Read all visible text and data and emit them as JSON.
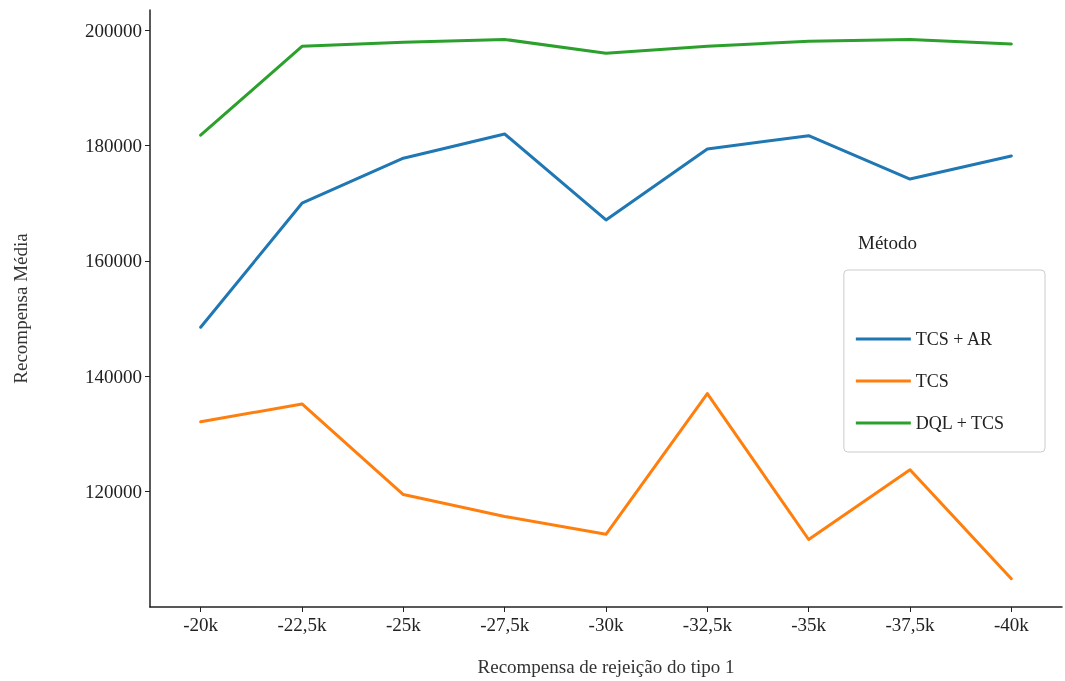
{
  "chart_data": {
    "type": "line",
    "xlabel": "Recompensa de rejeição do tipo 1",
    "ylabel": "Recompensa Média",
    "legend_title": "Método",
    "categories": [
      "-20k",
      "-22,5k",
      "-25k",
      "-27,5k",
      "-30k",
      "-32,5k",
      "-35k",
      "-37,5k",
      "-40k"
    ],
    "series": [
      {
        "name": "TCS + AR",
        "color": "#1f77b4",
        "values": [
          148500,
          170000,
          177800,
          182000,
          167100,
          179400,
          181700,
          174200,
          178200
        ]
      },
      {
        "name": "TCS",
        "color": "#ff7f0e",
        "values": [
          132100,
          135200,
          119500,
          115700,
          112600,
          137000,
          111700,
          123800,
          104900
        ]
      },
      {
        "name": "DQL + TCS",
        "color": "#2ca02c",
        "values": [
          181800,
          197200,
          197900,
          198400,
          196000,
          197200,
          198100,
          198400,
          197600
        ]
      }
    ],
    "ylim": [
      100000,
      203500
    ],
    "yticks": [
      120000,
      140000,
      160000,
      180000,
      200000
    ],
    "grid": false,
    "legend": "right",
    "marker": "none",
    "line_style": "solid"
  }
}
